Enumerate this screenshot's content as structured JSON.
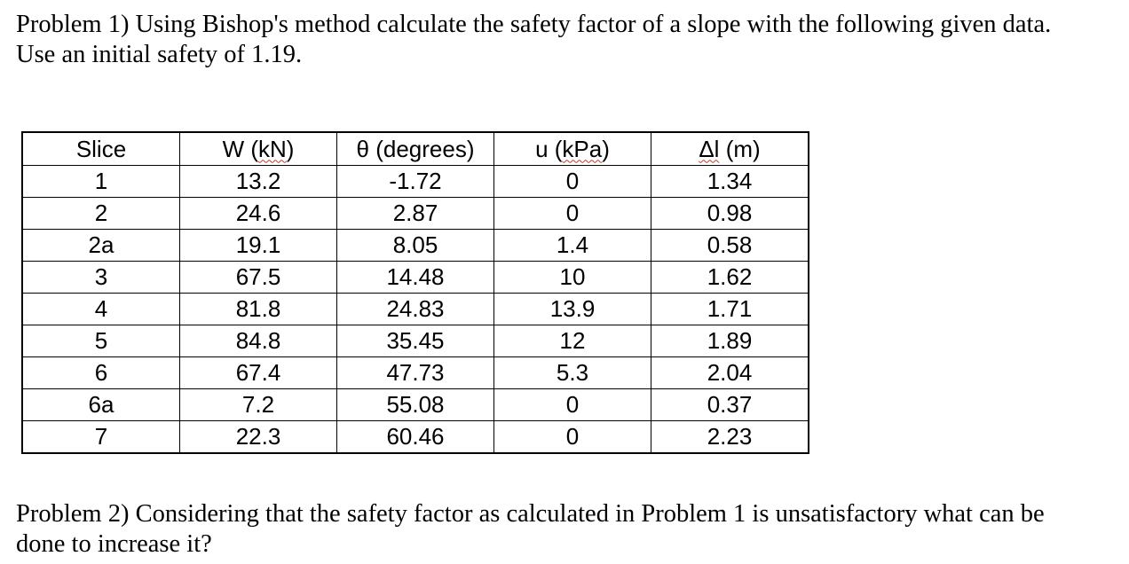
{
  "problem1": {
    "line1": "Problem 1) Using Bishop's method calculate the safety factor of a slope with the following given data.",
    "line2": "Use an initial safety of 1.19."
  },
  "table": {
    "headers": {
      "slice": "Slice",
      "w_prefix": "W (",
      "w_unit": "kN",
      "w_suffix": ")",
      "theta": "θ (degrees)",
      "u_prefix": "u (",
      "u_unit": "kPa",
      "u_suffix": ")",
      "dl_symbol": "Δl",
      "dl_suffix": " (m)"
    },
    "rows": [
      [
        "1",
        "13.2",
        "-1.72",
        "0",
        "1.34"
      ],
      [
        "2",
        "24.6",
        "2.87",
        "0",
        "0.98"
      ],
      [
        "2a",
        "19.1",
        "8.05",
        "1.4",
        "0.58"
      ],
      [
        "3",
        "67.5",
        "14.48",
        "10",
        "1.62"
      ],
      [
        "4",
        "81.8",
        "24.83",
        "13.9",
        "1.71"
      ],
      [
        "5",
        "84.8",
        "35.45",
        "12",
        "1.89"
      ],
      [
        "6",
        "67.4",
        "47.73",
        "5.3",
        "2.04"
      ],
      [
        "6a",
        "7.2",
        "55.08",
        "0",
        "0.37"
      ],
      [
        "7",
        "22.3",
        "60.46",
        "0",
        "2.23"
      ]
    ]
  },
  "problem2": {
    "line1": "Problem 2) Considering that the safety factor as calculated in Problem 1 is unsatisfactory what can be",
    "line2": "done to increase it?"
  }
}
